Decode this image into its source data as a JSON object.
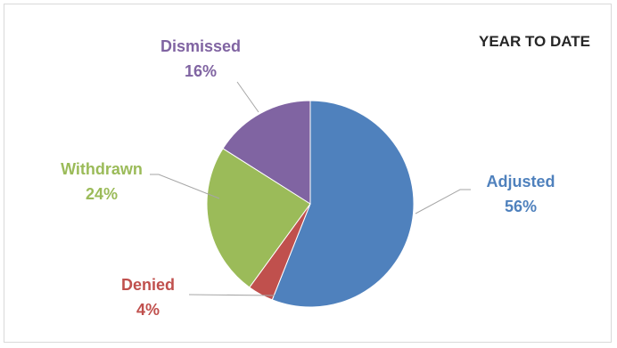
{
  "chart_data": {
    "type": "pie",
    "title": "YEAR TO DATE",
    "legend": "none",
    "slices": [
      {
        "name": "Adjusted",
        "value": 56,
        "label": "56%",
        "color": "#4f81bd"
      },
      {
        "name": "Denied",
        "value": 4,
        "label": "4%",
        "color": "#c0504d"
      },
      {
        "name": "Withdrawn",
        "value": 24,
        "label": "24%",
        "color": "#9bbb59"
      },
      {
        "name": "Dismissed",
        "value": 16,
        "label": "16%",
        "color": "#8064a2"
      }
    ]
  }
}
